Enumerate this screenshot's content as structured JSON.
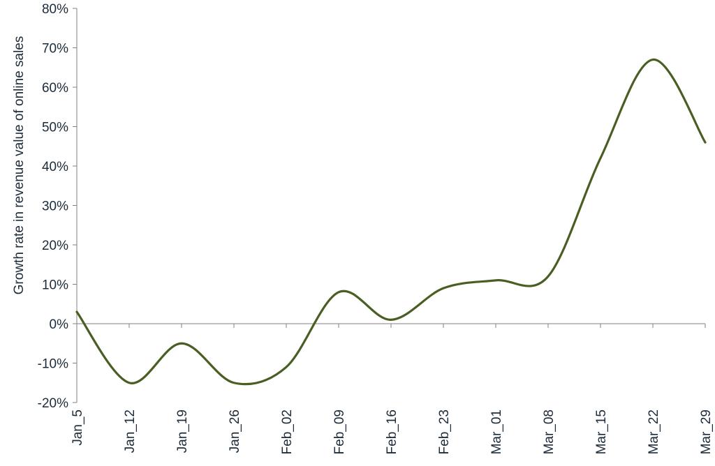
{
  "chart_data": {
    "type": "line",
    "x": [
      "Jan_5",
      "Jan_12",
      "Jan_19",
      "Jan_26",
      "Feb_02",
      "Feb_09",
      "Feb_16",
      "Feb_23",
      "Mar_01",
      "Mar_08",
      "Mar_15",
      "Mar_22",
      "Mar_29"
    ],
    "series": [
      {
        "values": [
          3,
          -15,
          -5,
          -15,
          -11,
          8,
          1,
          9,
          11,
          12,
          42,
          67,
          46
        ]
      }
    ],
    "title": "",
    "xlabel": "",
    "ylabel": "Growth rate in revenue value of online sales",
    "ylim": [
      -20,
      80
    ],
    "yticks": [
      "-20%",
      "-10%",
      "0%",
      "10%",
      "20%",
      "30%",
      "40%",
      "50%",
      "60%",
      "70%",
      "80%"
    ],
    "grid": false,
    "line_color": "#4a5e23",
    "axis_color": "#808080",
    "text_color": "#1c2b3a"
  }
}
